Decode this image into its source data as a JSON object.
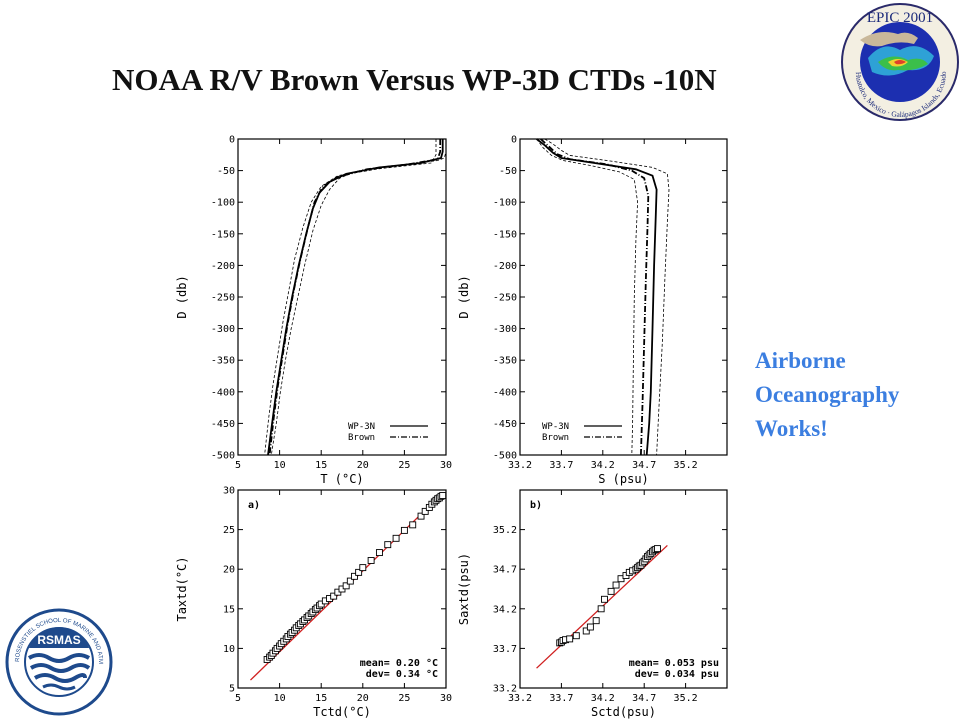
{
  "slide": {
    "title": "NOAA R/V Brown Versus WP-3D CTDs -10N",
    "callout": [
      "Airborne",
      "Oceanography",
      "Works!"
    ],
    "callout_color": "#3b7ee0"
  },
  "logos": {
    "epic": {
      "title": "EPIC 2001",
      "ring_text": "Huatulco, Mexico · Galápagos Islands, Ecuador"
    },
    "rsmas": {
      "name": "RSMAS",
      "ring_text": "ROSENSTIEL SCHOOL OF MARINE AND ATMOSPHERIC SCIENCE · UNIVERSITY OF MIAMI"
    }
  },
  "chart_data": [
    {
      "type": "line",
      "xlabel": "T (°C)",
      "ylabel": "D (db)",
      "xlim": [
        5,
        30
      ],
      "ylim": [
        -500,
        0
      ],
      "xticks": [
        5,
        10,
        15,
        20,
        25,
        30
      ],
      "yticks": [
        0,
        -50,
        -100,
        -150,
        -200,
        -250,
        -300,
        -350,
        -400,
        -450,
        -500
      ],
      "legend": [
        "WP-3N",
        "Brown"
      ],
      "legend_position": "bottom-right",
      "series": [
        {
          "name": "WP-3N",
          "style": "solid",
          "points": [
            [
              29.6,
              0
            ],
            [
              29.6,
              -20
            ],
            [
              29.4,
              -30
            ],
            [
              27,
              -38
            ],
            [
              22,
              -45
            ],
            [
              18,
              -55
            ],
            [
              16,
              -68
            ],
            [
              14.8,
              -85
            ],
            [
              14,
              -110
            ],
            [
              13.2,
              -150
            ],
            [
              12.3,
              -200
            ],
            [
              11.5,
              -250
            ],
            [
              10.8,
              -300
            ],
            [
              10.2,
              -350
            ],
            [
              9.6,
              -400
            ],
            [
              9.1,
              -450
            ],
            [
              8.6,
              -500
            ]
          ]
        },
        {
          "name": "Brown",
          "style": "dash-dot",
          "points": [
            [
              29.3,
              0
            ],
            [
              29.3,
              -20
            ],
            [
              29,
              -32
            ],
            [
              25.5,
              -40
            ],
            [
              20.5,
              -48
            ],
            [
              17,
              -60
            ],
            [
              15.2,
              -75
            ],
            [
              14.2,
              -100
            ],
            [
              13.4,
              -140
            ],
            [
              12.5,
              -190
            ],
            [
              11.7,
              -240
            ],
            [
              11,
              -290
            ],
            [
              10.4,
              -340
            ],
            [
              9.8,
              -390
            ],
            [
              9.3,
              -440
            ],
            [
              8.8,
              -500
            ]
          ]
        },
        {
          "name": "",
          "style": "dashed",
          "points": [
            [
              30,
              0
            ],
            [
              30,
              -20
            ],
            [
              29.8,
              -30
            ],
            [
              29,
              -34
            ],
            [
              24,
              -42
            ],
            [
              19,
              -52
            ],
            [
              17.2,
              -62
            ],
            [
              16,
              -80
            ],
            [
              15,
              -105
            ],
            [
              14,
              -145
            ],
            [
              13,
              -200
            ],
            [
              12.2,
              -250
            ],
            [
              11.4,
              -300
            ],
            [
              10.7,
              -350
            ],
            [
              10.1,
              -400
            ],
            [
              9.6,
              -450
            ],
            [
              9,
              -500
            ]
          ]
        },
        {
          "name": "",
          "style": "dashed",
          "points": [
            [
              28.8,
              0
            ],
            [
              28.8,
              -25
            ],
            [
              28.2,
              -38
            ],
            [
              22,
              -47
            ],
            [
              17,
              -58
            ],
            [
              15,
              -75
            ],
            [
              13.8,
              -100
            ],
            [
              12.8,
              -140
            ],
            [
              11.8,
              -190
            ],
            [
              11.1,
              -240
            ],
            [
              10.4,
              -290
            ],
            [
              9.8,
              -340
            ],
            [
              9.2,
              -390
            ],
            [
              8.7,
              -440
            ],
            [
              8.2,
              -500
            ]
          ]
        }
      ]
    },
    {
      "type": "line",
      "xlabel": "S (psu)",
      "ylabel": "D (db)",
      "xlim": [
        33.2,
        35.7
      ],
      "ylim": [
        -500,
        0
      ],
      "xticks": [
        33.2,
        33.7,
        34.2,
        34.7,
        35.2
      ],
      "yticks": [
        0,
        -50,
        -100,
        -150,
        -200,
        -250,
        -300,
        -350,
        -400,
        -450,
        -500
      ],
      "legend": [
        "WP-3N",
        "Brown"
      ],
      "legend_position": "bottom-left",
      "series": [
        {
          "name": "WP-3N",
          "style": "solid",
          "points": [
            [
              33.4,
              0
            ],
            [
              33.5,
              -10
            ],
            [
              33.6,
              -22
            ],
            [
              33.7,
              -30
            ],
            [
              34.1,
              -38
            ],
            [
              34.6,
              -48
            ],
            [
              34.8,
              -58
            ],
            [
              34.85,
              -80
            ],
            [
              34.84,
              -120
            ],
            [
              34.82,
              -200
            ],
            [
              34.8,
              -300
            ],
            [
              34.78,
              -400
            ],
            [
              34.76,
              -450
            ],
            [
              34.73,
              -500
            ]
          ]
        },
        {
          "name": "Brown",
          "style": "dash-dot",
          "points": [
            [
              33.45,
              0
            ],
            [
              33.55,
              -12
            ],
            [
              33.65,
              -24
            ],
            [
              33.8,
              -32
            ],
            [
              34.25,
              -40
            ],
            [
              34.55,
              -50
            ],
            [
              34.7,
              -62
            ],
            [
              34.75,
              -90
            ],
            [
              34.74,
              -140
            ],
            [
              34.72,
              -220
            ],
            [
              34.7,
              -320
            ],
            [
              34.68,
              -420
            ],
            [
              34.66,
              -500
            ]
          ]
        },
        {
          "name": "",
          "style": "dashed",
          "points": [
            [
              33.5,
              0
            ],
            [
              33.6,
              -8
            ],
            [
              33.7,
              -18
            ],
            [
              33.8,
              -26
            ],
            [
              34.3,
              -35
            ],
            [
              34.8,
              -45
            ],
            [
              34.98,
              -55
            ],
            [
              35,
              -80
            ],
            [
              34.98,
              -130
            ],
            [
              34.95,
              -220
            ],
            [
              34.92,
              -320
            ],
            [
              34.88,
              -420
            ],
            [
              34.85,
              -500
            ]
          ]
        },
        {
          "name": "",
          "style": "dashed",
          "points": [
            [
              33.4,
              0
            ],
            [
              33.48,
              -14
            ],
            [
              33.58,
              -26
            ],
            [
              33.72,
              -34
            ],
            [
              34.05,
              -42
            ],
            [
              34.4,
              -52
            ],
            [
              34.58,
              -64
            ],
            [
              34.62,
              -100
            ],
            [
              34.6,
              -160
            ],
            [
              34.58,
              -250
            ],
            [
              34.57,
              -350
            ],
            [
              34.56,
              -450
            ],
            [
              34.55,
              -500
            ]
          ]
        }
      ]
    },
    {
      "type": "scatter",
      "label": "a)",
      "xlabel": "Tctd(°C)",
      "ylabel": "Taxtd(°C)",
      "xlim": [
        5,
        30
      ],
      "ylim": [
        5,
        30
      ],
      "xticks": [
        5,
        10,
        15,
        20,
        25,
        30
      ],
      "yticks": [
        5,
        10,
        15,
        20,
        25,
        30
      ],
      "stats": [
        "mean= 0.20 °C",
        "dev= 0.34 °C"
      ],
      "fit_line": [
        [
          6.5,
          6.0
        ],
        [
          29.5,
          29.5
        ]
      ],
      "fit_color": "#d02020",
      "points": [
        [
          8.5,
          8.6
        ],
        [
          8.8,
          8.9
        ],
        [
          9.0,
          9.1
        ],
        [
          9.2,
          9.4
        ],
        [
          9.5,
          9.7
        ],
        [
          9.7,
          10.0
        ],
        [
          10.0,
          10.3
        ],
        [
          10.2,
          10.6
        ],
        [
          10.5,
          10.9
        ],
        [
          10.8,
          11.2
        ],
        [
          11.0,
          11.5
        ],
        [
          11.3,
          11.8
        ],
        [
          11.5,
          12.0
        ],
        [
          11.8,
          12.3
        ],
        [
          12.0,
          12.6
        ],
        [
          12.3,
          12.9
        ],
        [
          12.5,
          13.1
        ],
        [
          12.8,
          13.4
        ],
        [
          13.0,
          13.6
        ],
        [
          13.3,
          13.9
        ],
        [
          13.5,
          14.1
        ],
        [
          13.8,
          14.4
        ],
        [
          14.0,
          14.6
        ],
        [
          14.3,
          14.9
        ],
        [
          14.5,
          15.1
        ],
        [
          14.8,
          15.4
        ],
        [
          15.0,
          15.6
        ],
        [
          15.5,
          16.0
        ],
        [
          16.0,
          16.3
        ],
        [
          16.5,
          16.6
        ],
        [
          17.0,
          17.1
        ],
        [
          17.5,
          17.5
        ],
        [
          18.0,
          17.9
        ],
        [
          18.5,
          18.5
        ],
        [
          19.0,
          19.1
        ],
        [
          19.5,
          19.6
        ],
        [
          20.0,
          20.2
        ],
        [
          21.0,
          21.1
        ],
        [
          22.0,
          22.1
        ],
        [
          23.0,
          23.1
        ],
        [
          24.0,
          23.9
        ],
        [
          25.0,
          24.9
        ],
        [
          26.0,
          25.6
        ],
        [
          27.0,
          26.7
        ],
        [
          27.5,
          27.3
        ],
        [
          28.0,
          27.8
        ],
        [
          28.3,
          28.2
        ],
        [
          28.6,
          28.5
        ],
        [
          28.8,
          28.7
        ],
        [
          29.0,
          28.9
        ],
        [
          29.2,
          29.0
        ],
        [
          29.4,
          29.2
        ],
        [
          29.6,
          29.3
        ]
      ]
    },
    {
      "type": "scatter",
      "label": "b)",
      "xlabel": "Sctd(psu)",
      "ylabel": "Saxtd(psu)",
      "xlim": [
        33.2,
        35.7
      ],
      "ylim": [
        33.2,
        35.7
      ],
      "xticks": [
        33.2,
        33.7,
        34.2,
        34.7,
        35.2
      ],
      "yticks": [
        33.2,
        33.7,
        34.2,
        34.7,
        35.2
      ],
      "stats": [
        "mean= 0.053 psu",
        "dev= 0.034 psu"
      ],
      "fit_line": [
        [
          33.4,
          33.45
        ],
        [
          34.98,
          35.0
        ]
      ],
      "fit_color": "#d02020",
      "points": [
        [
          33.68,
          33.77
        ],
        [
          33.7,
          33.78
        ],
        [
          33.72,
          33.8
        ],
        [
          33.75,
          33.81
        ],
        [
          33.8,
          33.82
        ],
        [
          33.88,
          33.86
        ],
        [
          34.0,
          33.92
        ],
        [
          34.05,
          33.97
        ],
        [
          34.12,
          34.05
        ],
        [
          34.18,
          34.2
        ],
        [
          34.22,
          34.32
        ],
        [
          34.3,
          34.42
        ],
        [
          34.36,
          34.5
        ],
        [
          34.42,
          34.58
        ],
        [
          34.48,
          34.62
        ],
        [
          34.52,
          34.66
        ],
        [
          34.56,
          34.68
        ],
        [
          34.6,
          34.7
        ],
        [
          34.62,
          34.72
        ],
        [
          34.64,
          34.74
        ],
        [
          34.66,
          34.75
        ],
        [
          34.68,
          34.78
        ],
        [
          34.7,
          34.8
        ],
        [
          34.72,
          34.83
        ],
        [
          34.74,
          34.86
        ],
        [
          34.76,
          34.88
        ],
        [
          34.78,
          34.9
        ],
        [
          34.8,
          34.92
        ],
        [
          34.82,
          34.94
        ],
        [
          34.84,
          34.95
        ],
        [
          34.86,
          34.96
        ]
      ]
    }
  ]
}
